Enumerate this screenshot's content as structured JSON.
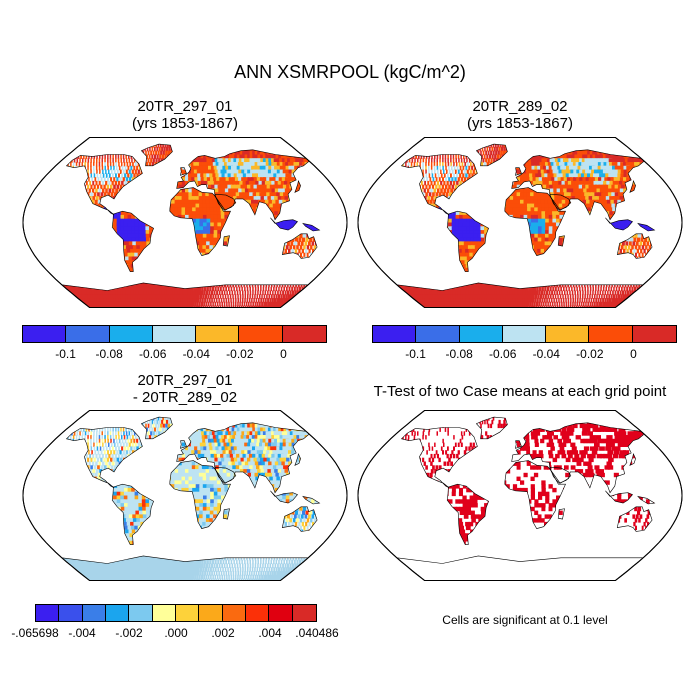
{
  "title": "ANN XSMRPOOL (kgC/m^2)",
  "panels": {
    "p1": {
      "line1": "20TR_297_01",
      "line2": "(yrs 1853-1867)"
    },
    "p2": {
      "line1": "20TR_289_02",
      "line2": "(yrs 1853-1867)"
    },
    "p3": {
      "line1": "20TR_297_01",
      "line2": "- 20TR_289_02"
    },
    "p4": {
      "line1": "T-Test of two Case means at each grid point"
    }
  },
  "colorbar_main": {
    "colors": [
      "#3b1ff0",
      "#3a6ee8",
      "#1aaeec",
      "#bde3f2",
      "#fbb829",
      "#fb4d08",
      "#d92a27"
    ],
    "ticks": [
      "-0.1",
      "-0.08",
      "-0.06",
      "-0.04",
      "-0.02",
      "0"
    ]
  },
  "colorbar_diff": {
    "colors": [
      "#3b1ff0",
      "#3a50ec",
      "#3a7ee8",
      "#1ba5ee",
      "#7cc9ef",
      "#ffff99",
      "#fdd23a",
      "#fba91a",
      "#fa6a10",
      "#fb3008",
      "#e00010",
      "#d92a27"
    ],
    "ticks": [
      "-.065698",
      "-.004",
      "-.002",
      ".000",
      ".002",
      ".004",
      ".040486"
    ]
  },
  "significance_note": "Cells are significant at 0.1 level",
  "map_colors": {
    "ocean": "#ffffff",
    "significance": "#e0001b",
    "diff_land": "#a8d4ea",
    "diff_antarctica": "#a8d4ea",
    "main_antarctica": "#d92a27"
  }
}
